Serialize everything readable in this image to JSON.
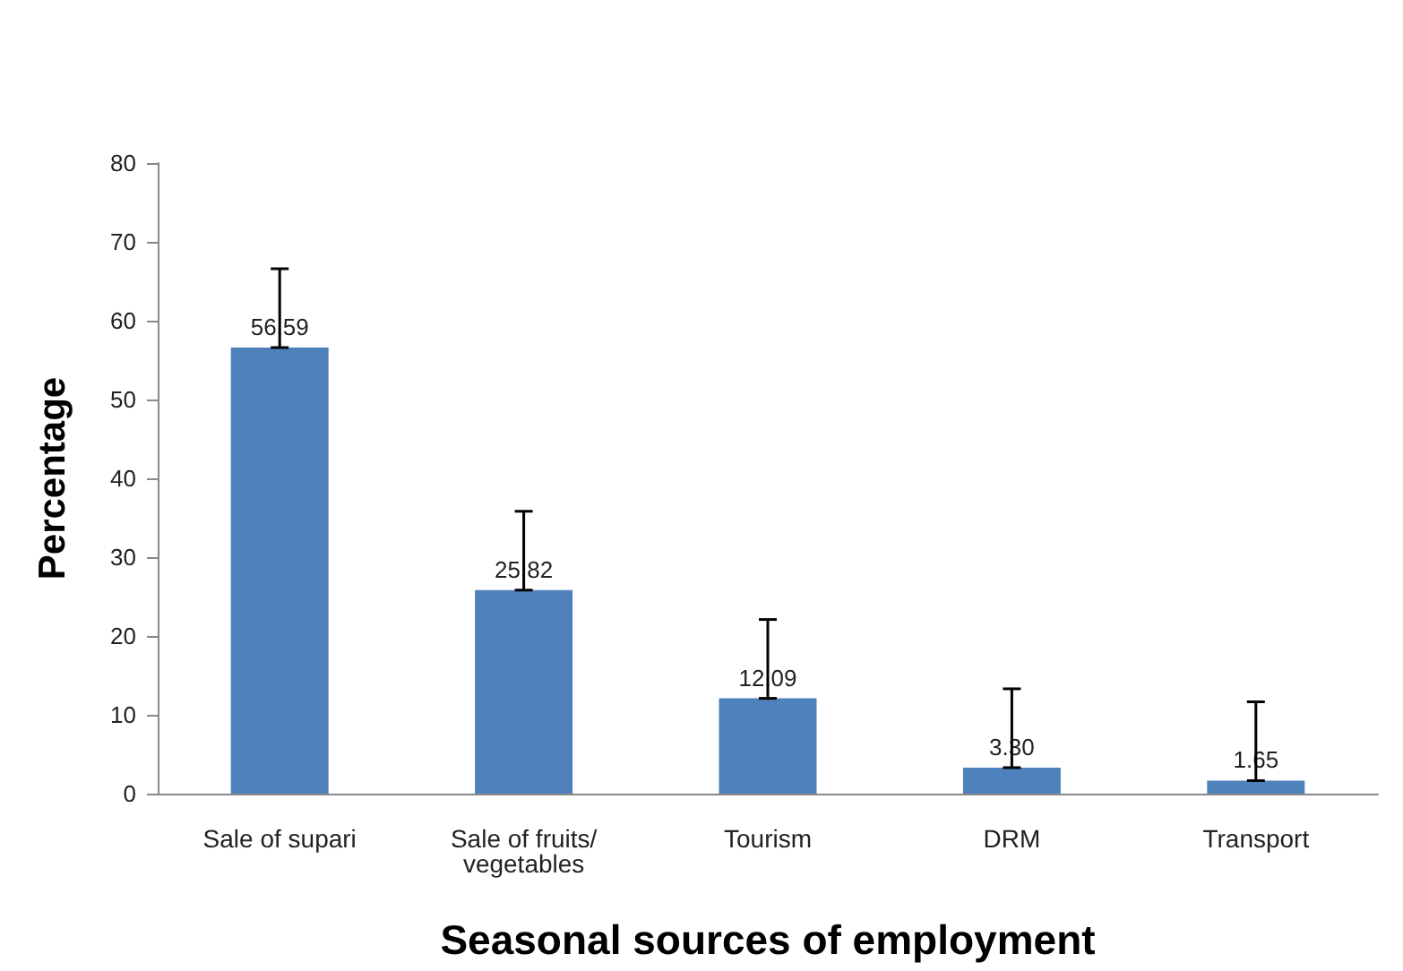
{
  "chart_data": {
    "type": "bar",
    "xlabel": "Seasonal sources of employment",
    "ylabel": "Percentage",
    "categories": [
      "Sale of supari",
      "Sale of fruits/vegetables",
      "Tourism",
      "DRM",
      "Transport"
    ],
    "values": [
      56.59,
      25.82,
      12.09,
      3.3,
      1.65
    ],
    "value_labels": [
      "56.59",
      "25.82",
      "12.09",
      "3.30",
      "1.65"
    ],
    "errors": [
      [
        56.59,
        66.59
      ],
      [
        25.82,
        35.82
      ],
      [
        12.09,
        22.09
      ],
      [
        3.3,
        13.3
      ],
      [
        1.65,
        11.65
      ]
    ],
    "color": "#4f81bd",
    "ylim": [
      0,
      80
    ],
    "yticks": [
      0,
      10,
      20,
      30,
      40,
      50,
      60,
      70,
      80
    ],
    "grid": false
  }
}
